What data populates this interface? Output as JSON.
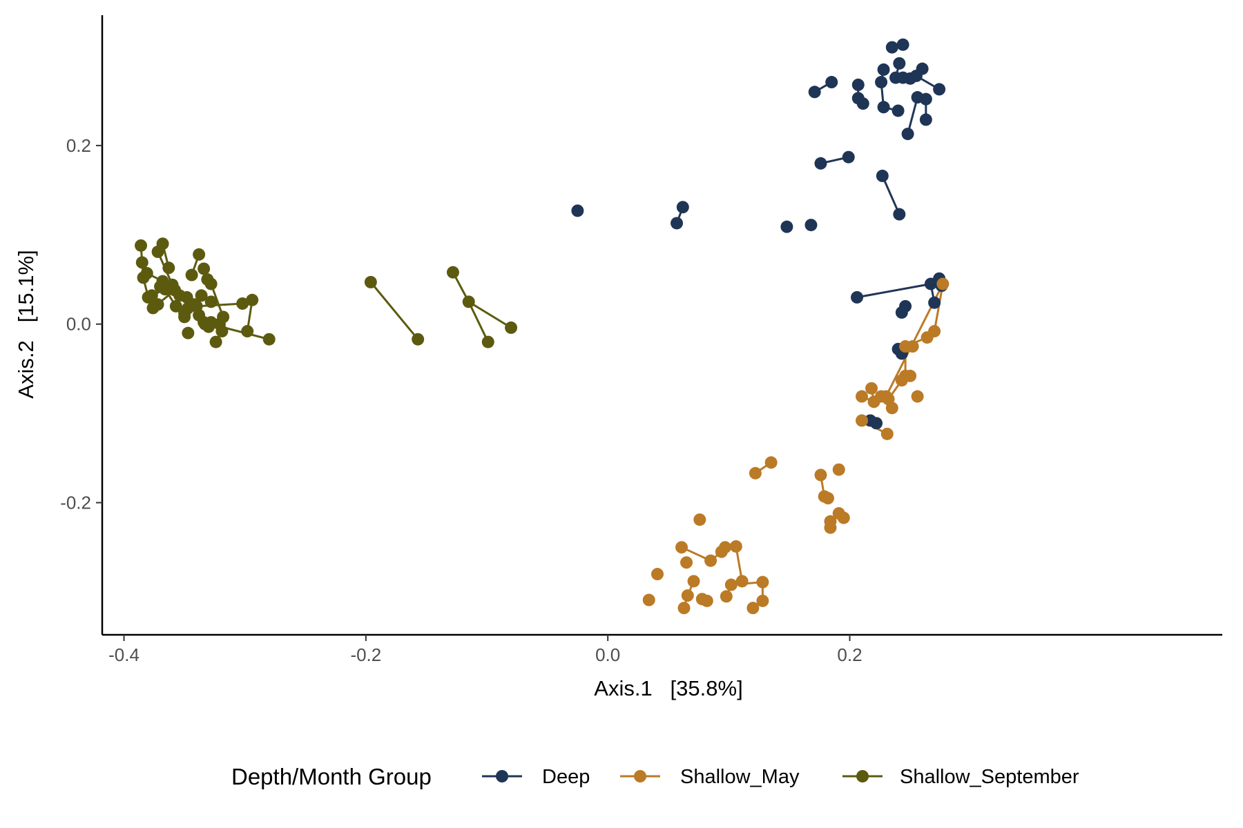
{
  "chart_data": {
    "type": "scatter",
    "xlabel": "Axis.1   [35.8%]",
    "ylabel": "Axis.2   [15.1%]",
    "xlim": [
      -0.418,
      0.508
    ],
    "ylim": [
      -0.348,
      0.346
    ],
    "x_ticks": [
      {
        "value": -0.4,
        "label": "-0.4"
      },
      {
        "value": -0.2,
        "label": "-0.2"
      },
      {
        "value": 0.0,
        "label": "0.0"
      },
      {
        "value": 0.2,
        "label": "0.2"
      }
    ],
    "y_ticks": [
      {
        "value": -0.2,
        "label": "-0.2"
      },
      {
        "value": 0.0,
        "label": "0.0"
      },
      {
        "value": 0.2,
        "label": "0.2"
      }
    ],
    "grid": false,
    "legend": {
      "title": "Depth/Month Group",
      "placement": "bottom",
      "entries": [
        "Deep",
        "Shallow_May",
        "Shallow_September"
      ]
    },
    "series": [
      {
        "name": "Deep",
        "color": "#1f3556",
        "points": [
          [
            -0.025,
            0.127
          ],
          [
            0.057,
            0.113
          ],
          [
            0.062,
            0.131
          ],
          [
            0.148,
            0.109
          ],
          [
            0.168,
            0.111
          ],
          [
            0.171,
            0.26
          ],
          [
            0.185,
            0.271
          ],
          [
            0.176,
            0.18
          ],
          [
            0.199,
            0.187
          ],
          [
            0.227,
            0.166
          ],
          [
            0.241,
            0.123
          ],
          [
            0.207,
            0.268
          ],
          [
            0.207,
            0.253
          ],
          [
            0.211,
            0.247
          ],
          [
            0.228,
            0.285
          ],
          [
            0.226,
            0.271
          ],
          [
            0.228,
            0.243
          ],
          [
            0.24,
            0.239
          ],
          [
            0.235,
            0.31
          ],
          [
            0.244,
            0.313
          ],
          [
            0.241,
            0.292
          ],
          [
            0.238,
            0.276
          ],
          [
            0.244,
            0.276
          ],
          [
            0.25,
            0.275
          ],
          [
            0.255,
            0.278
          ],
          [
            0.26,
            0.286
          ],
          [
            0.274,
            0.263
          ],
          [
            0.256,
            0.254
          ],
          [
            0.263,
            0.252
          ],
          [
            0.263,
            0.229
          ],
          [
            0.248,
            0.213
          ],
          [
            0.206,
            0.03
          ],
          [
            0.267,
            0.045
          ],
          [
            0.274,
            0.051
          ],
          [
            0.276,
            0.043
          ],
          [
            0.27,
            0.024
          ],
          [
            0.243,
            0.013
          ],
          [
            0.246,
            0.02
          ],
          [
            0.24,
            -0.028
          ],
          [
            0.243,
            -0.033
          ],
          [
            0.217,
            -0.108
          ],
          [
            0.222,
            -0.111
          ]
        ],
        "segments": [
          [
            5,
            6
          ],
          [
            7,
            8
          ],
          [
            9,
            10
          ],
          [
            1,
            2
          ],
          [
            11,
            12
          ],
          [
            12,
            13
          ],
          [
            14,
            15
          ],
          [
            15,
            16
          ],
          [
            16,
            17
          ],
          [
            18,
            19
          ],
          [
            20,
            21
          ],
          [
            21,
            22
          ],
          [
            22,
            23
          ],
          [
            23,
            24
          ],
          [
            24,
            25
          ],
          [
            24,
            26
          ],
          [
            27,
            28
          ],
          [
            28,
            29
          ],
          [
            27,
            30
          ],
          [
            31,
            32
          ],
          [
            32,
            33
          ],
          [
            33,
            34
          ],
          [
            32,
            35
          ],
          [
            36,
            37
          ],
          [
            38,
            39
          ],
          [
            40,
            41
          ]
        ]
      },
      {
        "name": "Shallow_May",
        "color": "#bb7a26",
        "points": [
          [
            0.034,
            -0.309
          ],
          [
            0.041,
            -0.28
          ],
          [
            0.061,
            -0.25
          ],
          [
            0.065,
            -0.267
          ],
          [
            0.063,
            -0.318
          ],
          [
            0.066,
            -0.304
          ],
          [
            0.071,
            -0.288
          ],
          [
            0.076,
            -0.219
          ],
          [
            0.078,
            -0.308
          ],
          [
            0.082,
            -0.31
          ],
          [
            0.085,
            -0.265
          ],
          [
            0.094,
            -0.255
          ],
          [
            0.097,
            -0.25
          ],
          [
            0.098,
            -0.305
          ],
          [
            0.102,
            -0.292
          ],
          [
            0.106,
            -0.249
          ],
          [
            0.111,
            -0.288
          ],
          [
            0.12,
            -0.318
          ],
          [
            0.128,
            -0.31
          ],
          [
            0.128,
            -0.289
          ],
          [
            0.122,
            -0.167
          ],
          [
            0.135,
            -0.155
          ],
          [
            0.176,
            -0.169
          ],
          [
            0.179,
            -0.193
          ],
          [
            0.182,
            -0.195
          ],
          [
            0.184,
            -0.221
          ],
          [
            0.184,
            -0.228
          ],
          [
            0.191,
            -0.163
          ],
          [
            0.191,
            -0.212
          ],
          [
            0.195,
            -0.217
          ],
          [
            0.21,
            -0.081
          ],
          [
            0.21,
            -0.108
          ],
          [
            0.218,
            -0.072
          ],
          [
            0.22,
            -0.087
          ],
          [
            0.226,
            -0.081
          ],
          [
            0.23,
            -0.081
          ],
          [
            0.232,
            -0.084
          ],
          [
            0.231,
            -0.123
          ],
          [
            0.235,
            -0.094
          ],
          [
            0.243,
            -0.063
          ],
          [
            0.246,
            -0.058
          ],
          [
            0.25,
            -0.058
          ],
          [
            0.246,
            -0.025
          ],
          [
            0.252,
            -0.025
          ],
          [
            0.256,
            -0.081
          ],
          [
            0.264,
            -0.015
          ],
          [
            0.27,
            -0.008
          ],
          [
            0.277,
            0.045
          ]
        ],
        "segments": [
          [
            2,
            10
          ],
          [
            10,
            11
          ],
          [
            11,
            12
          ],
          [
            4,
            5
          ],
          [
            5,
            6
          ],
          [
            8,
            9
          ],
          [
            13,
            14
          ],
          [
            14,
            16
          ],
          [
            15,
            16
          ],
          [
            17,
            18
          ],
          [
            18,
            19
          ],
          [
            19,
            14
          ],
          [
            20,
            21
          ],
          [
            22,
            23
          ],
          [
            23,
            24
          ],
          [
            25,
            26
          ],
          [
            28,
            29
          ],
          [
            31,
            37
          ],
          [
            30,
            33
          ],
          [
            33,
            32
          ],
          [
            33,
            35
          ],
          [
            34,
            36
          ],
          [
            36,
            39
          ],
          [
            39,
            40
          ],
          [
            40,
            42
          ],
          [
            42,
            45
          ],
          [
            45,
            46
          ],
          [
            46,
            47
          ],
          [
            47,
            35
          ]
        ]
      },
      {
        "name": "Shallow_September",
        "color": "#5c5a0f",
        "points": [
          [
            -0.386,
            0.088
          ],
          [
            -0.385,
            0.069
          ],
          [
            -0.384,
            0.052
          ],
          [
            -0.381,
            0.057
          ],
          [
            -0.38,
            0.03
          ],
          [
            -0.377,
            0.032
          ],
          [
            -0.376,
            0.018
          ],
          [
            -0.372,
            0.022
          ],
          [
            -0.372,
            0.081
          ],
          [
            -0.37,
            0.042
          ],
          [
            -0.368,
            0.09
          ],
          [
            -0.368,
            0.048
          ],
          [
            -0.366,
            0.039
          ],
          [
            -0.363,
            0.063
          ],
          [
            -0.36,
            0.044
          ],
          [
            -0.358,
            0.038
          ],
          [
            -0.357,
            0.02
          ],
          [
            -0.354,
            0.032
          ],
          [
            -0.35,
            0.012
          ],
          [
            -0.35,
            0.008
          ],
          [
            -0.348,
            0.03
          ],
          [
            -0.347,
            -0.01
          ],
          [
            -0.347,
            0.018
          ],
          [
            -0.344,
            0.055
          ],
          [
            -0.342,
            0.022
          ],
          [
            -0.34,
            0.02
          ],
          [
            -0.338,
            0.078
          ],
          [
            -0.338,
            0.01
          ],
          [
            -0.336,
            0.032
          ],
          [
            -0.334,
            0.062
          ],
          [
            -0.334,
            0.002
          ],
          [
            -0.333,
            0.0
          ],
          [
            -0.331,
            0.05
          ],
          [
            -0.33,
            -0.003
          ],
          [
            -0.328,
            0.045
          ],
          [
            -0.328,
            0.025
          ],
          [
            -0.328,
            0.002
          ],
          [
            -0.324,
            -0.02
          ],
          [
            -0.321,
            0.0
          ],
          [
            -0.319,
            -0.008
          ],
          [
            -0.318,
            0.008
          ],
          [
            -0.302,
            0.023
          ],
          [
            -0.298,
            -0.008
          ],
          [
            -0.294,
            0.027
          ],
          [
            -0.28,
            -0.017
          ],
          [
            -0.196,
            0.047
          ],
          [
            -0.157,
            -0.017
          ],
          [
            -0.128,
            0.058
          ],
          [
            -0.115,
            0.025
          ],
          [
            -0.099,
            -0.02
          ],
          [
            -0.08,
            -0.004
          ]
        ],
        "segments": [
          [
            0,
            2
          ],
          [
            1,
            3
          ],
          [
            2,
            4
          ],
          [
            3,
            11
          ],
          [
            4,
            12
          ],
          [
            6,
            15
          ],
          [
            8,
            10
          ],
          [
            8,
            14
          ],
          [
            10,
            13
          ],
          [
            12,
            16
          ],
          [
            16,
            19
          ],
          [
            17,
            24
          ],
          [
            19,
            22
          ],
          [
            20,
            27
          ],
          [
            22,
            25
          ],
          [
            23,
            26
          ],
          [
            24,
            30
          ],
          [
            25,
            41
          ],
          [
            27,
            33
          ],
          [
            28,
            35
          ],
          [
            29,
            32
          ],
          [
            30,
            44
          ],
          [
            31,
            36
          ],
          [
            32,
            34
          ],
          [
            34,
            40
          ],
          [
            36,
            38
          ],
          [
            37,
            39
          ],
          [
            38,
            40
          ],
          [
            41,
            43
          ],
          [
            42,
            43
          ],
          [
            45,
            46
          ],
          [
            47,
            48
          ],
          [
            48,
            49
          ],
          [
            48,
            50
          ]
        ]
      }
    ]
  }
}
